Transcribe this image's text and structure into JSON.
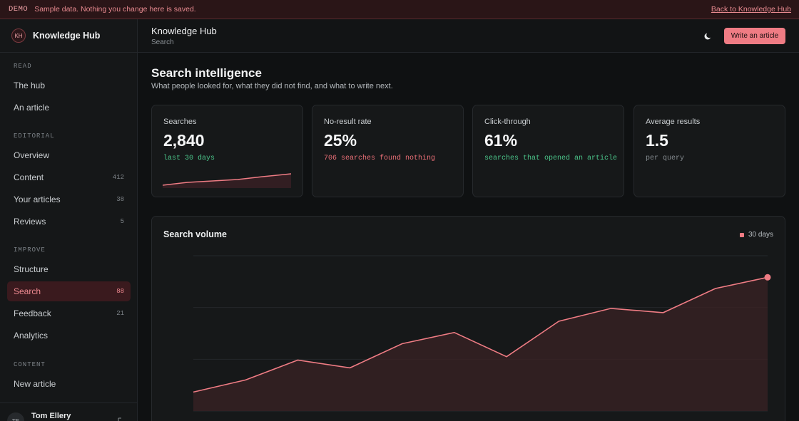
{
  "banner": {
    "tag": "DEMO",
    "text": "Sample data. Nothing you change here is saved.",
    "link": "Back to Knowledge Hub"
  },
  "brand": {
    "initials": "KH",
    "name": "Knowledge Hub"
  },
  "sidebar": {
    "sections": [
      {
        "title": "READ",
        "items": [
          {
            "label": "The hub"
          },
          {
            "label": "An article"
          }
        ]
      },
      {
        "title": "EDITORIAL",
        "items": [
          {
            "label": "Overview"
          },
          {
            "label": "Content",
            "count": "412"
          },
          {
            "label": "Your articles",
            "count": "38"
          },
          {
            "label": "Reviews",
            "count": "5"
          }
        ]
      },
      {
        "title": "IMPROVE",
        "items": [
          {
            "label": "Structure"
          },
          {
            "label": "Search",
            "count": "88",
            "active": true
          },
          {
            "label": "Feedback",
            "count": "21"
          },
          {
            "label": "Analytics"
          }
        ]
      },
      {
        "title": "CONTENT",
        "items": [
          {
            "label": "New article"
          }
        ]
      }
    ],
    "user": {
      "initials": "TE",
      "name": "Tom Ellery"
    }
  },
  "header": {
    "title": "Knowledge Hub",
    "crumb": "Search",
    "theme_icon": "moon-icon",
    "write_label": "Write an article"
  },
  "page": {
    "title": "Search intelligence",
    "subtitle": "What people looked for, what they did not find, and what to write next."
  },
  "cards": [
    {
      "label": "Searches",
      "value": "2,840",
      "note": "last 30 days",
      "tone": "green"
    },
    {
      "label": "No-result rate",
      "value": "25%",
      "note": "706 searches found nothing",
      "tone": "red"
    },
    {
      "label": "Click-through",
      "value": "61%",
      "note": "searches that opened an article",
      "tone": "green"
    },
    {
      "label": "Average results",
      "value": "1.5",
      "note": "per query",
      "tone": "muted"
    }
  ],
  "colors": {
    "accent": "#ef7c84",
    "green": "#4bc58a",
    "red": "#ea6f77"
  },
  "chart_data": {
    "type": "area",
    "title": "Search volume",
    "legend": [
      "30 days"
    ],
    "series": [
      {
        "name": "30 days",
        "values": [
          22,
          36,
          59,
          50,
          78,
          91,
          63,
          104,
          119,
          114,
          142,
          155
        ]
      }
    ],
    "ylim": [
      0,
      180
    ],
    "grid": true,
    "legend_position": "top-right"
  }
}
